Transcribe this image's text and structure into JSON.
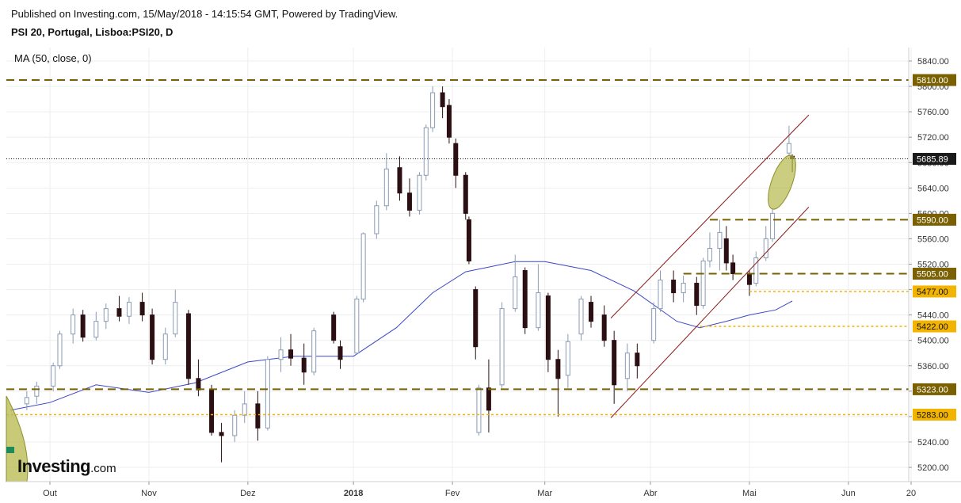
{
  "header": {
    "published": "Published on Investing.com, 15/May/2018 - 14:15:54 GMT, Powered by TradingView.",
    "symbol": "PSI 20, Portugal, Lisboa:PSI20, D"
  },
  "indicator": {
    "label": "MA (50, close, 0)"
  },
  "logo": {
    "text": "Investing",
    "suffix": ".com"
  },
  "colors": {
    "up_fill": "#ffffff",
    "up_border": "#8a9bb5",
    "down_fill": "#2b0f12",
    "ma": "#3b47c8",
    "channel": "#8b1a1a",
    "olive": "#7a6000",
    "gold": "#f3b400",
    "highlight": "#b5b84a",
    "grid": "#eeeeee"
  },
  "chart_data": {
    "type": "candlestick",
    "ylim": [
      5180,
      5860
    ],
    "y_ticks": [
      5200,
      5240,
      5280,
      5320,
      5360,
      5400,
      5440,
      5480,
      5520,
      5560,
      5600,
      5640,
      5680,
      5720,
      5760,
      5800,
      5840
    ],
    "x_axis_labels": [
      {
        "label": "Out",
        "date": "2017-10-02",
        "bold": false
      },
      {
        "label": "Nov",
        "date": "2017-11-01",
        "bold": false
      },
      {
        "label": "Dez",
        "date": "2017-12-01",
        "bold": false
      },
      {
        "label": "2018",
        "date": "2018-01-02",
        "bold": true
      },
      {
        "label": "Fev",
        "date": "2018-02-01",
        "bold": false
      },
      {
        "label": "Mar",
        "date": "2018-03-01",
        "bold": false
      },
      {
        "label": "Abr",
        "date": "2018-04-02",
        "bold": false
      },
      {
        "label": "Mai",
        "date": "2018-05-02",
        "bold": false
      },
      {
        "label": "Jun",
        "date": "2018-06-01",
        "bold": false
      },
      {
        "label": "20",
        "date": "2018-06-20",
        "bold": false
      }
    ],
    "horizontal_levels": [
      {
        "value": 5810.0,
        "label": "5810.00",
        "style": "olive-dashed"
      },
      {
        "value": 5590.0,
        "label": "5590.00",
        "style": "olive-dashed"
      },
      {
        "value": 5505.0,
        "label": "5505.00",
        "style": "olive-dashed"
      },
      {
        "value": 5477.0,
        "label": "5477.00",
        "style": "gold-dotted"
      },
      {
        "value": 5422.0,
        "label": "5422.00",
        "style": "gold-dotted"
      },
      {
        "value": 5323.0,
        "label": "5323.00",
        "style": "olive-dashed"
      },
      {
        "value": 5283.0,
        "label": "5283.00",
        "style": "gold-dotted"
      }
    ],
    "last_price": {
      "value": 5685.89,
      "label": "5685.89"
    },
    "channel": {
      "upper": [
        {
          "date": "2018-03-21",
          "value": 5435
        },
        {
          "date": "2018-05-20",
          "value": 5755
        }
      ],
      "lower": [
        {
          "date": "2018-03-21",
          "value": 5278
        },
        {
          "date": "2018-05-20",
          "value": 5610
        }
      ]
    },
    "moving_average": [
      {
        "date": "2017-09-20",
        "value": 5290
      },
      {
        "date": "2017-10-02",
        "value": 5302
      },
      {
        "date": "2017-10-16",
        "value": 5330
      },
      {
        "date": "2017-11-01",
        "value": 5318
      },
      {
        "date": "2017-11-15",
        "value": 5333
      },
      {
        "date": "2017-12-01",
        "value": 5366
      },
      {
        "date": "2017-12-15",
        "value": 5375
      },
      {
        "date": "2018-01-02",
        "value": 5375
      },
      {
        "date": "2018-01-15",
        "value": 5420
      },
      {
        "date": "2018-01-26",
        "value": 5475
      },
      {
        "date": "2018-02-05",
        "value": 5508
      },
      {
        "date": "2018-02-20",
        "value": 5524
      },
      {
        "date": "2018-03-01",
        "value": 5524
      },
      {
        "date": "2018-03-15",
        "value": 5510
      },
      {
        "date": "2018-03-28",
        "value": 5478
      },
      {
        "date": "2018-04-10",
        "value": 5430
      },
      {
        "date": "2018-04-17",
        "value": 5420
      },
      {
        "date": "2018-04-25",
        "value": 5430
      },
      {
        "date": "2018-05-02",
        "value": 5440
      },
      {
        "date": "2018-05-10",
        "value": 5448
      },
      {
        "date": "2018-05-15",
        "value": 5462
      }
    ],
    "candles": [
      {
        "date": "2017-09-25",
        "o": 5300,
        "h": 5320,
        "l": 5290,
        "c": 5310
      },
      {
        "date": "2017-09-28",
        "o": 5312,
        "h": 5335,
        "l": 5300,
        "c": 5328
      },
      {
        "date": "2017-10-03",
        "o": 5328,
        "h": 5365,
        "l": 5320,
        "c": 5360
      },
      {
        "date": "2017-10-05",
        "o": 5360,
        "h": 5415,
        "l": 5355,
        "c": 5410
      },
      {
        "date": "2017-10-09",
        "o": 5410,
        "h": 5450,
        "l": 5395,
        "c": 5440
      },
      {
        "date": "2017-10-12",
        "o": 5440,
        "h": 5448,
        "l": 5398,
        "c": 5405
      },
      {
        "date": "2017-10-16",
        "o": 5405,
        "h": 5445,
        "l": 5400,
        "c": 5430
      },
      {
        "date": "2017-10-19",
        "o": 5430,
        "h": 5458,
        "l": 5418,
        "c": 5450
      },
      {
        "date": "2017-10-23",
        "o": 5450,
        "h": 5470,
        "l": 5430,
        "c": 5438
      },
      {
        "date": "2017-10-26",
        "o": 5438,
        "h": 5468,
        "l": 5426,
        "c": 5460
      },
      {
        "date": "2017-10-30",
        "o": 5460,
        "h": 5475,
        "l": 5430,
        "c": 5440
      },
      {
        "date": "2017-11-02",
        "o": 5440,
        "h": 5450,
        "l": 5362,
        "c": 5370
      },
      {
        "date": "2017-11-06",
        "o": 5370,
        "h": 5420,
        "l": 5362,
        "c": 5410
      },
      {
        "date": "2017-11-09",
        "o": 5410,
        "h": 5480,
        "l": 5405,
        "c": 5460
      },
      {
        "date": "2017-11-13",
        "o": 5442,
        "h": 5448,
        "l": 5330,
        "c": 5340
      },
      {
        "date": "2017-11-16",
        "o": 5340,
        "h": 5370,
        "l": 5312,
        "c": 5322
      },
      {
        "date": "2017-11-20",
        "o": 5322,
        "h": 5330,
        "l": 5250,
        "c": 5255
      },
      {
        "date": "2017-11-23",
        "o": 5255,
        "h": 5270,
        "l": 5208,
        "c": 5250
      },
      {
        "date": "2017-11-27",
        "o": 5250,
        "h": 5290,
        "l": 5240,
        "c": 5282
      },
      {
        "date": "2017-11-30",
        "o": 5282,
        "h": 5320,
        "l": 5270,
        "c": 5300
      },
      {
        "date": "2017-12-04",
        "o": 5300,
        "h": 5320,
        "l": 5242,
        "c": 5262
      },
      {
        "date": "2017-12-07",
        "o": 5262,
        "h": 5375,
        "l": 5258,
        "c": 5370
      },
      {
        "date": "2017-12-11",
        "o": 5370,
        "h": 5405,
        "l": 5350,
        "c": 5385
      },
      {
        "date": "2017-12-14",
        "o": 5385,
        "h": 5410,
        "l": 5360,
        "c": 5372
      },
      {
        "date": "2017-12-18",
        "o": 5372,
        "h": 5395,
        "l": 5330,
        "c": 5350
      },
      {
        "date": "2017-12-21",
        "o": 5350,
        "h": 5420,
        "l": 5345,
        "c": 5415
      },
      {
        "date": "2017-12-27",
        "o": 5440,
        "h": 5445,
        "l": 5395,
        "c": 5400
      },
      {
        "date": "2017-12-29",
        "o": 5390,
        "h": 5400,
        "l": 5355,
        "c": 5370
      },
      {
        "date": "2018-01-03",
        "o": 5380,
        "h": 5470,
        "l": 5378,
        "c": 5465
      },
      {
        "date": "2018-01-05",
        "o": 5465,
        "h": 5570,
        "l": 5460,
        "c": 5568
      },
      {
        "date": "2018-01-09",
        "o": 5568,
        "h": 5620,
        "l": 5560,
        "c": 5612
      },
      {
        "date": "2018-01-12",
        "o": 5612,
        "h": 5695,
        "l": 5605,
        "c": 5670
      },
      {
        "date": "2018-01-16",
        "o": 5672,
        "h": 5690,
        "l": 5620,
        "c": 5632
      },
      {
        "date": "2018-01-19",
        "o": 5632,
        "h": 5655,
        "l": 5595,
        "c": 5605
      },
      {
        "date": "2018-01-22",
        "o": 5605,
        "h": 5665,
        "l": 5598,
        "c": 5660
      },
      {
        "date": "2018-01-24",
        "o": 5660,
        "h": 5740,
        "l": 5652,
        "c": 5735
      },
      {
        "date": "2018-01-26",
        "o": 5735,
        "h": 5800,
        "l": 5728,
        "c": 5790
      },
      {
        "date": "2018-01-29",
        "o": 5790,
        "h": 5800,
        "l": 5750,
        "c": 5768
      },
      {
        "date": "2018-01-31",
        "o": 5770,
        "h": 5780,
        "l": 5710,
        "c": 5720
      },
      {
        "date": "2018-02-02",
        "o": 5710,
        "h": 5718,
        "l": 5640,
        "c": 5660
      },
      {
        "date": "2018-02-05",
        "o": 5660,
        "h": 5665,
        "l": 5590,
        "c": 5600
      },
      {
        "date": "2018-02-06",
        "o": 5590,
        "h": 5595,
        "l": 5520,
        "c": 5525
      },
      {
        "date": "2018-02-08",
        "o": 5480,
        "h": 5485,
        "l": 5370,
        "c": 5390
      },
      {
        "date": "2018-02-09",
        "o": 5255,
        "h": 5330,
        "l": 5250,
        "c": 5325
      },
      {
        "date": "2018-02-12",
        "o": 5325,
        "h": 5370,
        "l": 5255,
        "c": 5290
      },
      {
        "date": "2018-02-16",
        "o": 5330,
        "h": 5460,
        "l": 5325,
        "c": 5450
      },
      {
        "date": "2018-02-20",
        "o": 5450,
        "h": 5535,
        "l": 5445,
        "c": 5500
      },
      {
        "date": "2018-02-23",
        "o": 5510,
        "h": 5515,
        "l": 5410,
        "c": 5420
      },
      {
        "date": "2018-02-27",
        "o": 5420,
        "h": 5520,
        "l": 5415,
        "c": 5475
      },
      {
        "date": "2018-03-02",
        "o": 5470,
        "h": 5475,
        "l": 5350,
        "c": 5370
      },
      {
        "date": "2018-03-05",
        "o": 5370,
        "h": 5385,
        "l": 5280,
        "c": 5340
      },
      {
        "date": "2018-03-08",
        "o": 5345,
        "h": 5410,
        "l": 5325,
        "c": 5398
      },
      {
        "date": "2018-03-12",
        "o": 5410,
        "h": 5470,
        "l": 5400,
        "c": 5465
      },
      {
        "date": "2018-03-15",
        "o": 5460,
        "h": 5470,
        "l": 5420,
        "c": 5430
      },
      {
        "date": "2018-03-19",
        "o": 5440,
        "h": 5455,
        "l": 5390,
        "c": 5400
      },
      {
        "date": "2018-03-22",
        "o": 5400,
        "h": 5415,
        "l": 5300,
        "c": 5330
      },
      {
        "date": "2018-03-26",
        "o": 5340,
        "h": 5395,
        "l": 5320,
        "c": 5380
      },
      {
        "date": "2018-03-29",
        "o": 5380,
        "h": 5395,
        "l": 5340,
        "c": 5360
      },
      {
        "date": "2018-04-03",
        "o": 5400,
        "h": 5460,
        "l": 5395,
        "c": 5450
      },
      {
        "date": "2018-04-05",
        "o": 5450,
        "h": 5510,
        "l": 5445,
        "c": 5495
      },
      {
        "date": "2018-04-09",
        "o": 5495,
        "h": 5510,
        "l": 5460,
        "c": 5475
      },
      {
        "date": "2018-04-12",
        "o": 5475,
        "h": 5502,
        "l": 5460,
        "c": 5490
      },
      {
        "date": "2018-04-16",
        "o": 5490,
        "h": 5500,
        "l": 5440,
        "c": 5455
      },
      {
        "date": "2018-04-18",
        "o": 5455,
        "h": 5530,
        "l": 5450,
        "c": 5525
      },
      {
        "date": "2018-04-20",
        "o": 5525,
        "h": 5570,
        "l": 5515,
        "c": 5545
      },
      {
        "date": "2018-04-23",
        "o": 5545,
        "h": 5590,
        "l": 5510,
        "c": 5570
      },
      {
        "date": "2018-04-25",
        "o": 5560,
        "h": 5580,
        "l": 5510,
        "c": 5522
      },
      {
        "date": "2018-04-27",
        "o": 5522,
        "h": 5535,
        "l": 5495,
        "c": 5505
      },
      {
        "date": "2018-05-02",
        "o": 5505,
        "h": 5510,
        "l": 5470,
        "c": 5488
      },
      {
        "date": "2018-05-04",
        "o": 5490,
        "h": 5540,
        "l": 5485,
        "c": 5530
      },
      {
        "date": "2018-05-07",
        "o": 5530,
        "h": 5580,
        "l": 5525,
        "c": 5560
      },
      {
        "date": "2018-05-09",
        "o": 5560,
        "h": 5608,
        "l": 5555,
        "c": 5600
      },
      {
        "date": "2018-05-14",
        "o": 5695,
        "h": 5738,
        "l": 5690,
        "c": 5710
      },
      {
        "date": "2018-05-15",
        "o": 5690,
        "h": 5693,
        "l": 5665,
        "c": 5686
      }
    ]
  }
}
